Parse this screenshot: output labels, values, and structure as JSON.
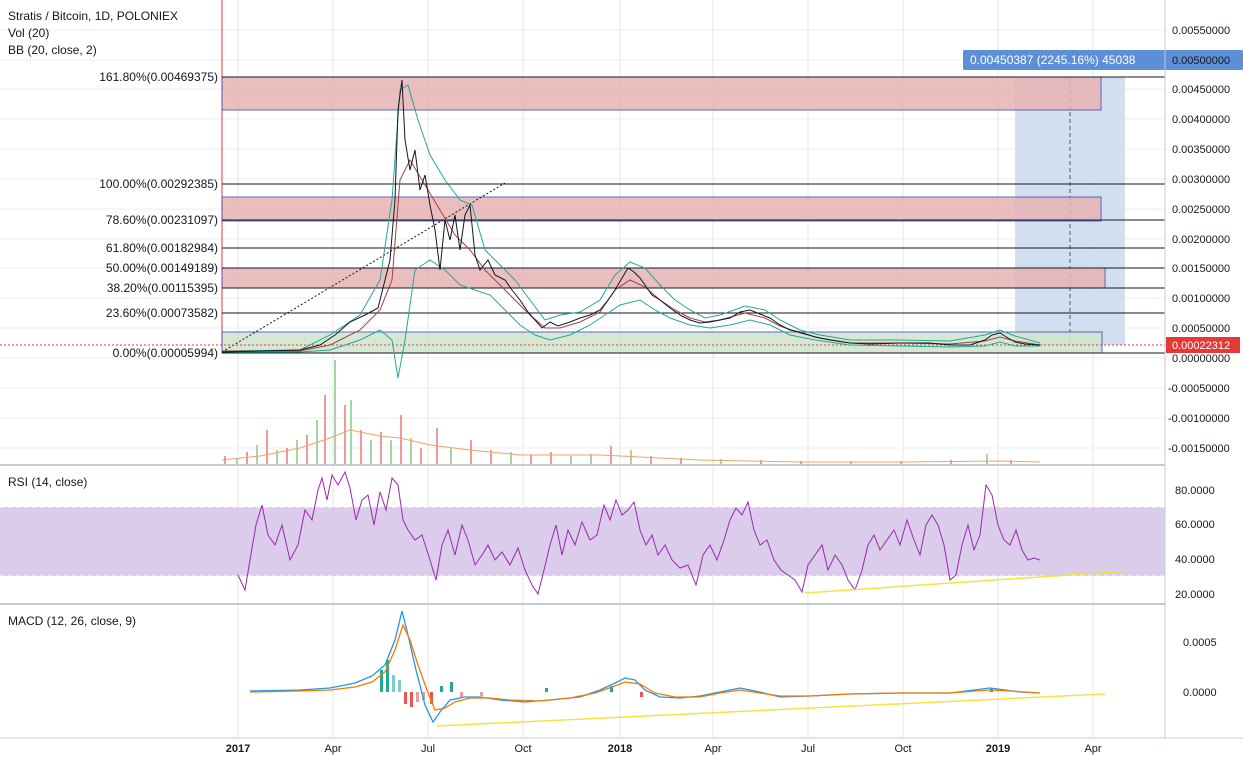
{
  "header": {
    "title": "Stratis / Bitcoin, 1D, POLONIEX",
    "vol_label": "Vol (20)",
    "bb_label": "BB (20, close, 2)"
  },
  "measure_label": "0.00450387 (2245.16%) 45038",
  "current_price": "0.00022312",
  "fib_levels": [
    {
      "label": "161.80%(0.00469375)",
      "value": 0.00469375
    },
    {
      "label": "100.00%(0.00292385)",
      "value": 0.00292385
    },
    {
      "label": "78.60%(0.00231097)",
      "value": 0.00231097
    },
    {
      "label": "61.80%(0.00182984)",
      "value": 0.00182984
    },
    {
      "label": "50.00%(0.00149189)",
      "value": 0.00149189
    },
    {
      "label": "38.20%(0.00115395)",
      "value": 0.00115395
    },
    {
      "label": "23.60%(0.00073582)",
      "value": 0.00073582
    },
    {
      "label": "0.00%(0.00005994)",
      "value": 5.994e-05
    }
  ],
  "price_axis": [
    "0.00550000",
    "0.00500000",
    "0.00450000",
    "0.00400000",
    "0.00350000",
    "0.00300000",
    "0.00250000",
    "0.00200000",
    "0.00150000",
    "0.00100000",
    "0.00050000",
    "0.00000000",
    "-0.00050000",
    "-0.00100000",
    "-0.00150000"
  ],
  "rsi": {
    "label": "RSI (14, close)",
    "axis": [
      "80.0000",
      "60.0000",
      "40.0000",
      "20.0000"
    ]
  },
  "macd": {
    "label": "MACD (12, 26, close, 9)",
    "axis": [
      "0.0005",
      "0.0000"
    ]
  },
  "time_axis": [
    "2017",
    "Apr",
    "Jul",
    "Oct",
    "2018",
    "Apr",
    "Jul",
    "Oct",
    "2019",
    "Apr"
  ],
  "colors": {
    "rsi_line": "#9c27b0",
    "rsi_band": "#d6c7e8",
    "trend_line": "#f0e442",
    "macd_line": "#2196f3",
    "signal_line": "#f57c00",
    "fib_zone": "#e7b3b3",
    "projection": "#c9d9ee",
    "price_badge": "#e53935",
    "measure_badge": "#5c8fd6"
  },
  "chart_data": {
    "type": "line",
    "title": "Stratis / Bitcoin, 1D, POLONIEX",
    "x": [
      "2017-01",
      "2017-04",
      "2017-05",
      "2017-06",
      "2017-07",
      "2017-08",
      "2017-09",
      "2017-10",
      "2017-11",
      "2017-12",
      "2018-01",
      "2018-02",
      "2018-03",
      "2018-04",
      "2018-05",
      "2018-06",
      "2018-07",
      "2018-08",
      "2018-09",
      "2018-10",
      "2018-11",
      "2018-12",
      "2019-01",
      "2019-02"
    ],
    "series": [
      {
        "values": [
          6e-05,
          0.0003,
          0.0008,
          0.004,
          0.0018,
          0.0022,
          0.0013,
          0.0008,
          0.0004,
          0.0006,
          0.0013,
          0.0009,
          0.0006,
          0.0005,
          0.00075,
          0.0005,
          0.0003,
          0.00016,
          0.00014,
          0.00015,
          0.00014,
          0.00013,
          0.00035,
          0.00022
        ]
      }
    ],
    "ylim": [
      -0.0017,
      0.0058
    ]
  }
}
